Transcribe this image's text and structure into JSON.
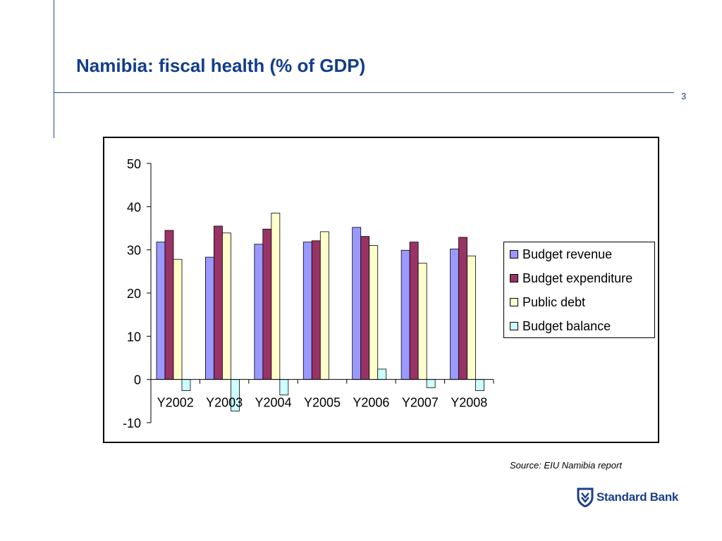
{
  "slide": {
    "title": "Namibia: fiscal health (% of GDP)",
    "page_number": "3",
    "source": "Source:  EIU Namibia report",
    "logo_text": "Standard Bank",
    "colors": {
      "accent": "#123e8a",
      "rule": "#2b4a8f",
      "logo": "#1c3f8c"
    }
  },
  "chart_data": {
    "type": "bar",
    "categories": [
      "Y2002",
      "Y2003",
      "Y2004",
      "Y2005",
      "Y2006",
      "Y2007",
      "Y2008"
    ],
    "series": [
      {
        "name": "Budget revenue",
        "color": "#9999ff",
        "values": [
          31.8,
          28.3,
          31.3,
          31.8,
          35.2,
          29.9,
          30.2
        ]
      },
      {
        "name": "Budget expenditure",
        "color": "#993366",
        "values": [
          34.5,
          35.5,
          34.8,
          32.1,
          33.1,
          31.8,
          32.9
        ]
      },
      {
        "name": "Public debt",
        "color": "#ffffcc",
        "values": [
          27.8,
          33.9,
          38.5,
          34.2,
          31.0,
          26.9,
          28.6
        ]
      },
      {
        "name": "Budget balance",
        "color": "#ccffff",
        "values": [
          -2.6,
          -7.3,
          -3.6,
          0,
          2.4,
          -1.9,
          -2.6
        ]
      }
    ],
    "yticks": [
      -10,
      0,
      10,
      20,
      30,
      40,
      50
    ],
    "ylim": [
      -10,
      50
    ],
    "xlabel": "",
    "ylabel": "",
    "grid": false,
    "legend_position": "right"
  }
}
